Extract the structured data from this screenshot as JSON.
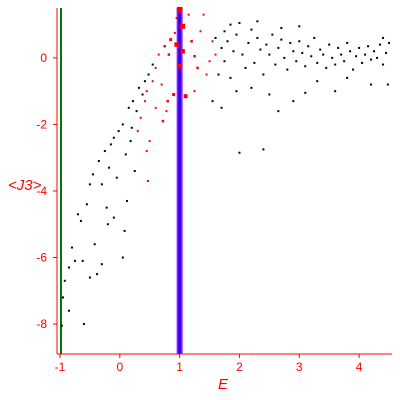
{
  "colors": {
    "axis": "#ff0000",
    "tick_text": "#ff0000",
    "black_points": "#000000",
    "red_points": "#ff0000",
    "vertical_line_green": "#007700",
    "vertical_line_blue": "#3300ff",
    "vertical_line_violet": "#a020f0"
  },
  "chart_data": {
    "type": "scatter",
    "title": "",
    "xlabel": "E",
    "ylabel": "<J3>",
    "xlim": [
      -1.05,
      4.55
    ],
    "ylim": [
      -8.9,
      1.5
    ],
    "xticks": [
      -1,
      0,
      1,
      2,
      3,
      4
    ],
    "yticks": [
      -8,
      -6,
      -4,
      -2,
      0
    ],
    "grid": false,
    "legend": "none",
    "vertical_lines": [
      {
        "x": -1.0,
        "color": "#007700"
      },
      {
        "x": 1.0,
        "color": "#3300ff"
      }
    ],
    "red_points": [
      [
        1.0,
        1.45,
        5.5
      ],
      [
        1.05,
        0.95,
        5.0
      ],
      [
        0.95,
        0.4,
        4.5
      ],
      [
        1.05,
        0.2,
        4.5
      ],
      [
        1.0,
        -0.25,
        4.5
      ],
      [
        1.1,
        -1.15,
        4.0
      ],
      [
        0.85,
        0.55,
        3.0
      ],
      [
        0.75,
        0.35,
        2.5
      ],
      [
        0.82,
        0.1,
        2.5
      ],
      [
        1.2,
        0.5,
        2.5
      ],
      [
        1.25,
        0.05,
        2.5
      ],
      [
        1.3,
        -0.3,
        2.5
      ],
      [
        0.9,
        -1.1,
        3.0
      ],
      [
        0.8,
        -1.3,
        2.5
      ],
      [
        0.72,
        -1.9,
        2.5
      ],
      [
        0.78,
        -1.6,
        2.0
      ],
      [
        0.95,
        1.2,
        2.0
      ],
      [
        1.15,
        1.3,
        2.0
      ],
      [
        1.4,
        1.3,
        2.0
      ],
      [
        1.55,
        0.5,
        2.0
      ],
      [
        1.6,
        0.1,
        2.0
      ],
      [
        1.5,
        -0.1,
        2.0
      ],
      [
        0.6,
        -0.3,
        2.0
      ],
      [
        0.55,
        -0.7,
        2.0
      ],
      [
        0.45,
        -1.0,
        2.0
      ],
      [
        0.42,
        -1.3,
        2.0
      ],
      [
        0.35,
        -1.8,
        2.0
      ],
      [
        0.3,
        -2.2,
        2.0
      ],
      [
        0.5,
        -2.5,
        2.0
      ],
      [
        0.45,
        -2.8,
        2.0
      ],
      [
        0.47,
        -3.7,
        2.0
      ],
      [
        0.65,
        0.1,
        2.0
      ],
      [
        0.7,
        -0.8,
        2.0
      ],
      [
        1.35,
        0.8,
        2.0
      ],
      [
        1.45,
        -0.5,
        2.0
      ],
      [
        0.6,
        -1.5,
        2.0
      ],
      [
        1.25,
        -1.0,
        2.0
      ],
      [
        0.92,
        0.75,
        2.0
      ]
    ],
    "black_points": [
      [
        -0.97,
        -8.05
      ],
      [
        -0.95,
        -7.2
      ],
      [
        -0.92,
        -6.7
      ],
      [
        -0.85,
        -6.3
      ],
      [
        -0.8,
        -5.7
      ],
      [
        -0.75,
        -6.1
      ],
      [
        -0.7,
        -4.7
      ],
      [
        -0.65,
        -4.9
      ],
      [
        -0.62,
        -6.1
      ],
      [
        -0.6,
        -8.0
      ],
      [
        -0.55,
        -4.4
      ],
      [
        -0.5,
        -3.8
      ],
      [
        -0.45,
        -3.5
      ],
      [
        -0.42,
        -5.6
      ],
      [
        -0.38,
        -6.5
      ],
      [
        -0.35,
        -3.1
      ],
      [
        -0.3,
        -3.8
      ],
      [
        -0.25,
        -2.8
      ],
      [
        -0.22,
        -4.5
      ],
      [
        -0.18,
        -3.3
      ],
      [
        -0.15,
        -2.6
      ],
      [
        -0.1,
        -2.4
      ],
      [
        -0.05,
        -3.6
      ],
      [
        -0.02,
        -2.2
      ],
      [
        0.05,
        -2.0
      ],
      [
        0.1,
        -2.9
      ],
      [
        0.15,
        -1.5
      ],
      [
        0.2,
        -2.1
      ],
      [
        0.22,
        -1.3
      ],
      [
        0.28,
        -1.6
      ],
      [
        0.32,
        -0.9
      ],
      [
        0.38,
        -1.1
      ],
      [
        0.42,
        -0.7
      ],
      [
        0.48,
        -0.5
      ],
      [
        0.55,
        -0.2
      ],
      [
        0.05,
        -6.0
      ],
      [
        0.08,
        -5.2
      ],
      [
        0.12,
        -4.3
      ],
      [
        -0.2,
        -5.0
      ],
      [
        -0.1,
        -4.8
      ],
      [
        0.25,
        -3.4
      ],
      [
        0.18,
        -2.5
      ],
      [
        -0.3,
        -6.2
      ],
      [
        -0.5,
        -6.6
      ],
      [
        -0.85,
        -7.6
      ],
      [
        1.6,
        0.6
      ],
      [
        1.7,
        0.3
      ],
      [
        1.75,
        -0.1
      ],
      [
        1.8,
        0.5
      ],
      [
        1.85,
        -0.6
      ],
      [
        1.9,
        0.2
      ],
      [
        1.95,
        0.7
      ],
      [
        2.0,
        1.05
      ],
      [
        2.05,
        0.1
      ],
      [
        2.1,
        -0.3
      ],
      [
        2.15,
        0.45
      ],
      [
        2.2,
        0.85
      ],
      [
        2.25,
        -0.15
      ],
      [
        2.3,
        0.6
      ],
      [
        2.35,
        0.25
      ],
      [
        2.4,
        -0.5
      ],
      [
        2.45,
        0.4
      ],
      [
        2.5,
        0.1
      ],
      [
        2.55,
        0.7
      ],
      [
        2.6,
        -0.2
      ],
      [
        2.65,
        0.3
      ],
      [
        2.7,
        0.55
      ],
      [
        2.75,
        0.0
      ],
      [
        2.8,
        -0.35
      ],
      [
        2.85,
        0.45
      ],
      [
        2.9,
        0.2
      ],
      [
        2.95,
        -0.1
      ],
      [
        3.0,
        0.5
      ],
      [
        3.05,
        0.15
      ],
      [
        3.1,
        -0.25
      ],
      [
        3.15,
        0.35
      ],
      [
        3.2,
        0.05
      ],
      [
        3.25,
        0.6
      ],
      [
        3.3,
        -0.15
      ],
      [
        3.35,
        0.25
      ],
      [
        3.4,
        0.1
      ],
      [
        3.45,
        -0.3
      ],
      [
        3.5,
        0.4
      ],
      [
        3.55,
        0.0
      ],
      [
        3.6,
        -0.2
      ],
      [
        3.65,
        0.3
      ],
      [
        3.7,
        0.1
      ],
      [
        3.75,
        -0.1
      ],
      [
        3.8,
        0.45
      ],
      [
        3.85,
        0.2
      ],
      [
        3.9,
        -0.35
      ],
      [
        3.95,
        0.05
      ],
      [
        4.0,
        0.3
      ],
      [
        4.05,
        -0.15
      ],
      [
        4.1,
        0.1
      ],
      [
        4.15,
        0.35
      ],
      [
        4.2,
        -0.05
      ],
      [
        4.25,
        0.2
      ],
      [
        4.3,
        0.0
      ],
      [
        4.35,
        0.4
      ],
      [
        4.4,
        -0.2
      ],
      [
        4.45,
        0.15
      ],
      [
        4.5,
        0.45
      ],
      [
        4.2,
        -0.8
      ],
      [
        4.48,
        -0.8
      ],
      [
        1.65,
        -0.5
      ],
      [
        1.55,
        -1.3
      ],
      [
        1.7,
        -1.5
      ],
      [
        1.95,
        -1.0
      ],
      [
        2.0,
        -2.85
      ],
      [
        2.4,
        -2.75
      ],
      [
        2.65,
        -1.6
      ],
      [
        2.9,
        -1.3
      ],
      [
        3.1,
        -1.05
      ],
      [
        3.6,
        -1.0
      ],
      [
        2.2,
        -0.9
      ],
      [
        2.5,
        -1.1
      ],
      [
        3.3,
        -0.7
      ],
      [
        3.8,
        -0.6
      ],
      [
        1.85,
        1.0
      ],
      [
        2.3,
        1.1
      ],
      [
        2.7,
        0.9
      ],
      [
        3.0,
        0.95
      ],
      [
        1.75,
        0.8
      ],
      [
        4.4,
        0.6
      ]
    ]
  }
}
